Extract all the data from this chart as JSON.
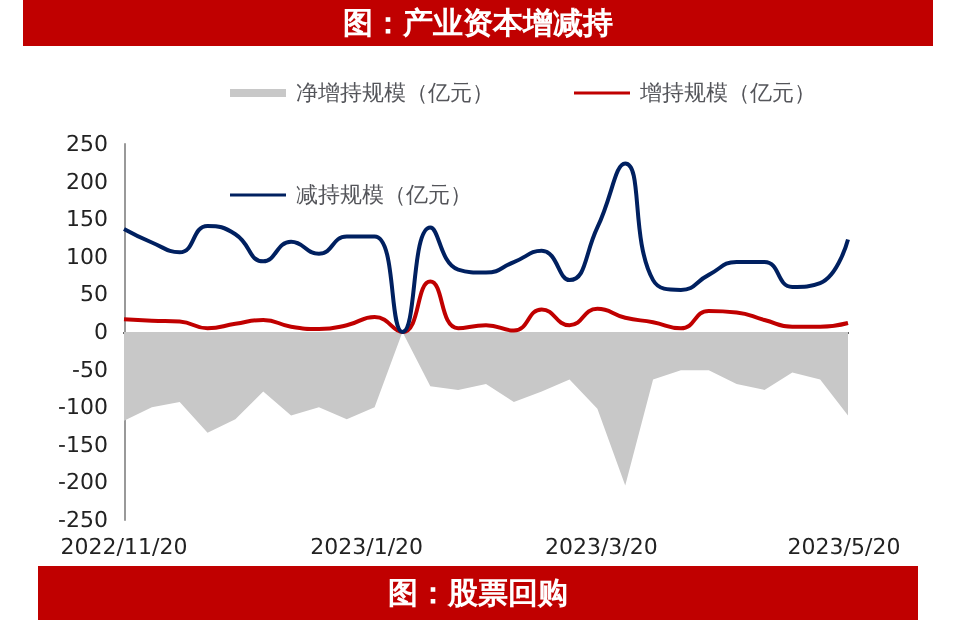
{
  "chart_data": {
    "type": "line",
    "title": "图：产业资本增减持",
    "annotations": [
      "图：股票回购"
    ],
    "x": [
      "2022-11-20",
      "2022-11-27",
      "2022-12-04",
      "2022-12-11",
      "2022-12-18",
      "2022-12-25",
      "2023-01-01",
      "2023-01-08",
      "2023-01-15",
      "2023-01-22",
      "2023-01-29",
      "2023-02-05",
      "2023-02-12",
      "2023-02-19",
      "2023-02-26",
      "2023-03-05",
      "2023-03-12",
      "2023-03-19",
      "2023-03-26",
      "2023-04-02",
      "2023-04-09",
      "2023-04-16",
      "2023-04-23",
      "2023-04-30",
      "2023-05-07",
      "2023-05-14",
      "2023-05-21"
    ],
    "series": [
      {
        "name": "净增持规模（亿元）",
        "type": "area",
        "color": "#c8c8c8",
        "values": [
          -118,
          -100,
          -93,
          -134,
          -116,
          -79,
          -111,
          -100,
          -116,
          -100,
          0,
          -72,
          -77,
          -69,
          -93,
          -79,
          -63,
          -102,
          -204,
          -63,
          -51,
          -51,
          -69,
          -77,
          -54,
          -63,
          -111
        ]
      },
      {
        "name": "增持规模（亿元）",
        "type": "line",
        "color": "#c00000",
        "values": [
          17,
          15,
          14,
          5,
          11,
          16,
          7,
          4,
          9,
          20,
          0,
          67,
          5,
          9,
          2,
          30,
          9,
          31,
          19,
          13,
          5,
          28,
          26,
          16,
          7,
          7,
          12
        ]
      },
      {
        "name": "减持规模（亿元）",
        "type": "line",
        "color": "#002060",
        "values": [
          137,
          119,
          106,
          141,
          130,
          94,
          120,
          104,
          127,
          127,
          0,
          139,
          83,
          79,
          93,
          108,
          69,
          139,
          224,
          69,
          56,
          76,
          93,
          93,
          60,
          65,
          123
        ]
      }
    ],
    "xlim": [
      "2022-11-20",
      "2023-05-21"
    ],
    "xticks": [
      {
        "value": "2022-11-20",
        "label": "2022/11/20"
      },
      {
        "value": "2023-01-20",
        "label": "2023/1/20"
      },
      {
        "value": "2023-03-20",
        "label": "2023/3/20"
      },
      {
        "value": "2023-05-20",
        "label": "2023/5/20"
      }
    ],
    "ylim": [
      -250,
      250
    ],
    "yticks": [
      -250,
      -200,
      -150,
      -100,
      -50,
      0,
      50,
      100,
      150,
      200,
      250
    ],
    "legend": "top",
    "marker": "none",
    "line_style": "solid"
  }
}
